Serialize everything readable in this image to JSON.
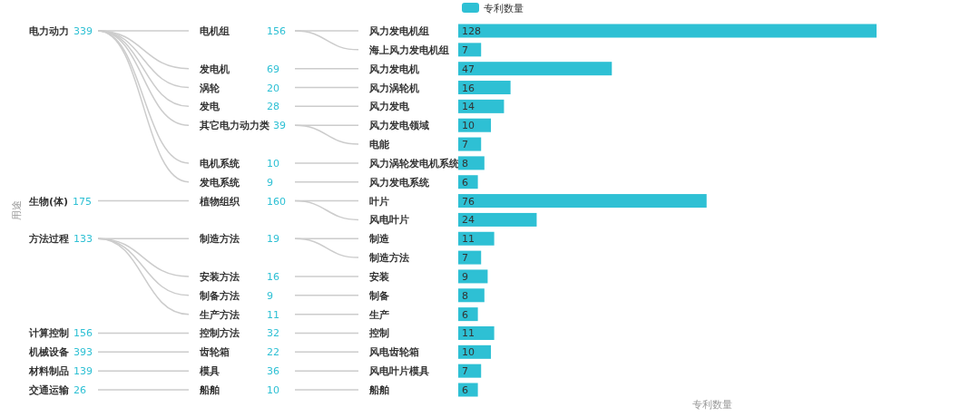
{
  "chart_data": [
    {
      "type": "other",
      "ylabel": "用途",
      "data_labels": true,
      "categories": [
        "电力动力",
        null,
        null,
        null,
        null,
        null,
        null,
        null,
        null,
        "生物(体)",
        null,
        "方法过程",
        null,
        null,
        null,
        null,
        "计算控制",
        "机械设备",
        "材料制品",
        "交通运输"
      ],
      "values": [
        339,
        null,
        null,
        null,
        null,
        null,
        null,
        null,
        null,
        175,
        null,
        133,
        null,
        null,
        null,
        null,
        156,
        393,
        139,
        26
      ]
    },
    {
      "type": "other",
      "data_labels": true,
      "categories": [
        "电机组",
        null,
        "发电机",
        "涡轮",
        "发电",
        "其它电力动力类",
        null,
        "电机系统",
        "发电系统",
        "植物组织",
        null,
        "制造方法",
        null,
        "安装方法",
        "制备方法",
        "生产方法",
        "控制方法",
        "齿轮箱",
        "模具",
        "船舶"
      ],
      "values": [
        156,
        null,
        69,
        20,
        28,
        39,
        null,
        10,
        9,
        160,
        null,
        19,
        null,
        16,
        9,
        11,
        32,
        22,
        36,
        10
      ]
    },
    {
      "type": "bar",
      "orientation": "horizontal",
      "xlabel": "专利数量",
      "legend": "top",
      "data_labels": true,
      "categories": [
        "风力发电机组",
        "海上风力发电机组",
        "风力发电机",
        "风力涡轮机",
        "风力发电",
        "风力发电领域",
        "电能",
        "风力涡轮发电机系统",
        "风力发电系统",
        "叶片",
        "风电叶片",
        "制造",
        "制造方法",
        "安装",
        "制备",
        "生产",
        "控制",
        "风电齿轮箱",
        "风电叶片模具",
        "船舶"
      ],
      "series": [
        {
          "name": "专利数量",
          "color": "#2ec0d4",
          "values": [
            128,
            7,
            47,
            16,
            14,
            10,
            7,
            8,
            6,
            76,
            24,
            11,
            7,
            9,
            8,
            6,
            11,
            10,
            7,
            6
          ]
        }
      ]
    }
  ]
}
